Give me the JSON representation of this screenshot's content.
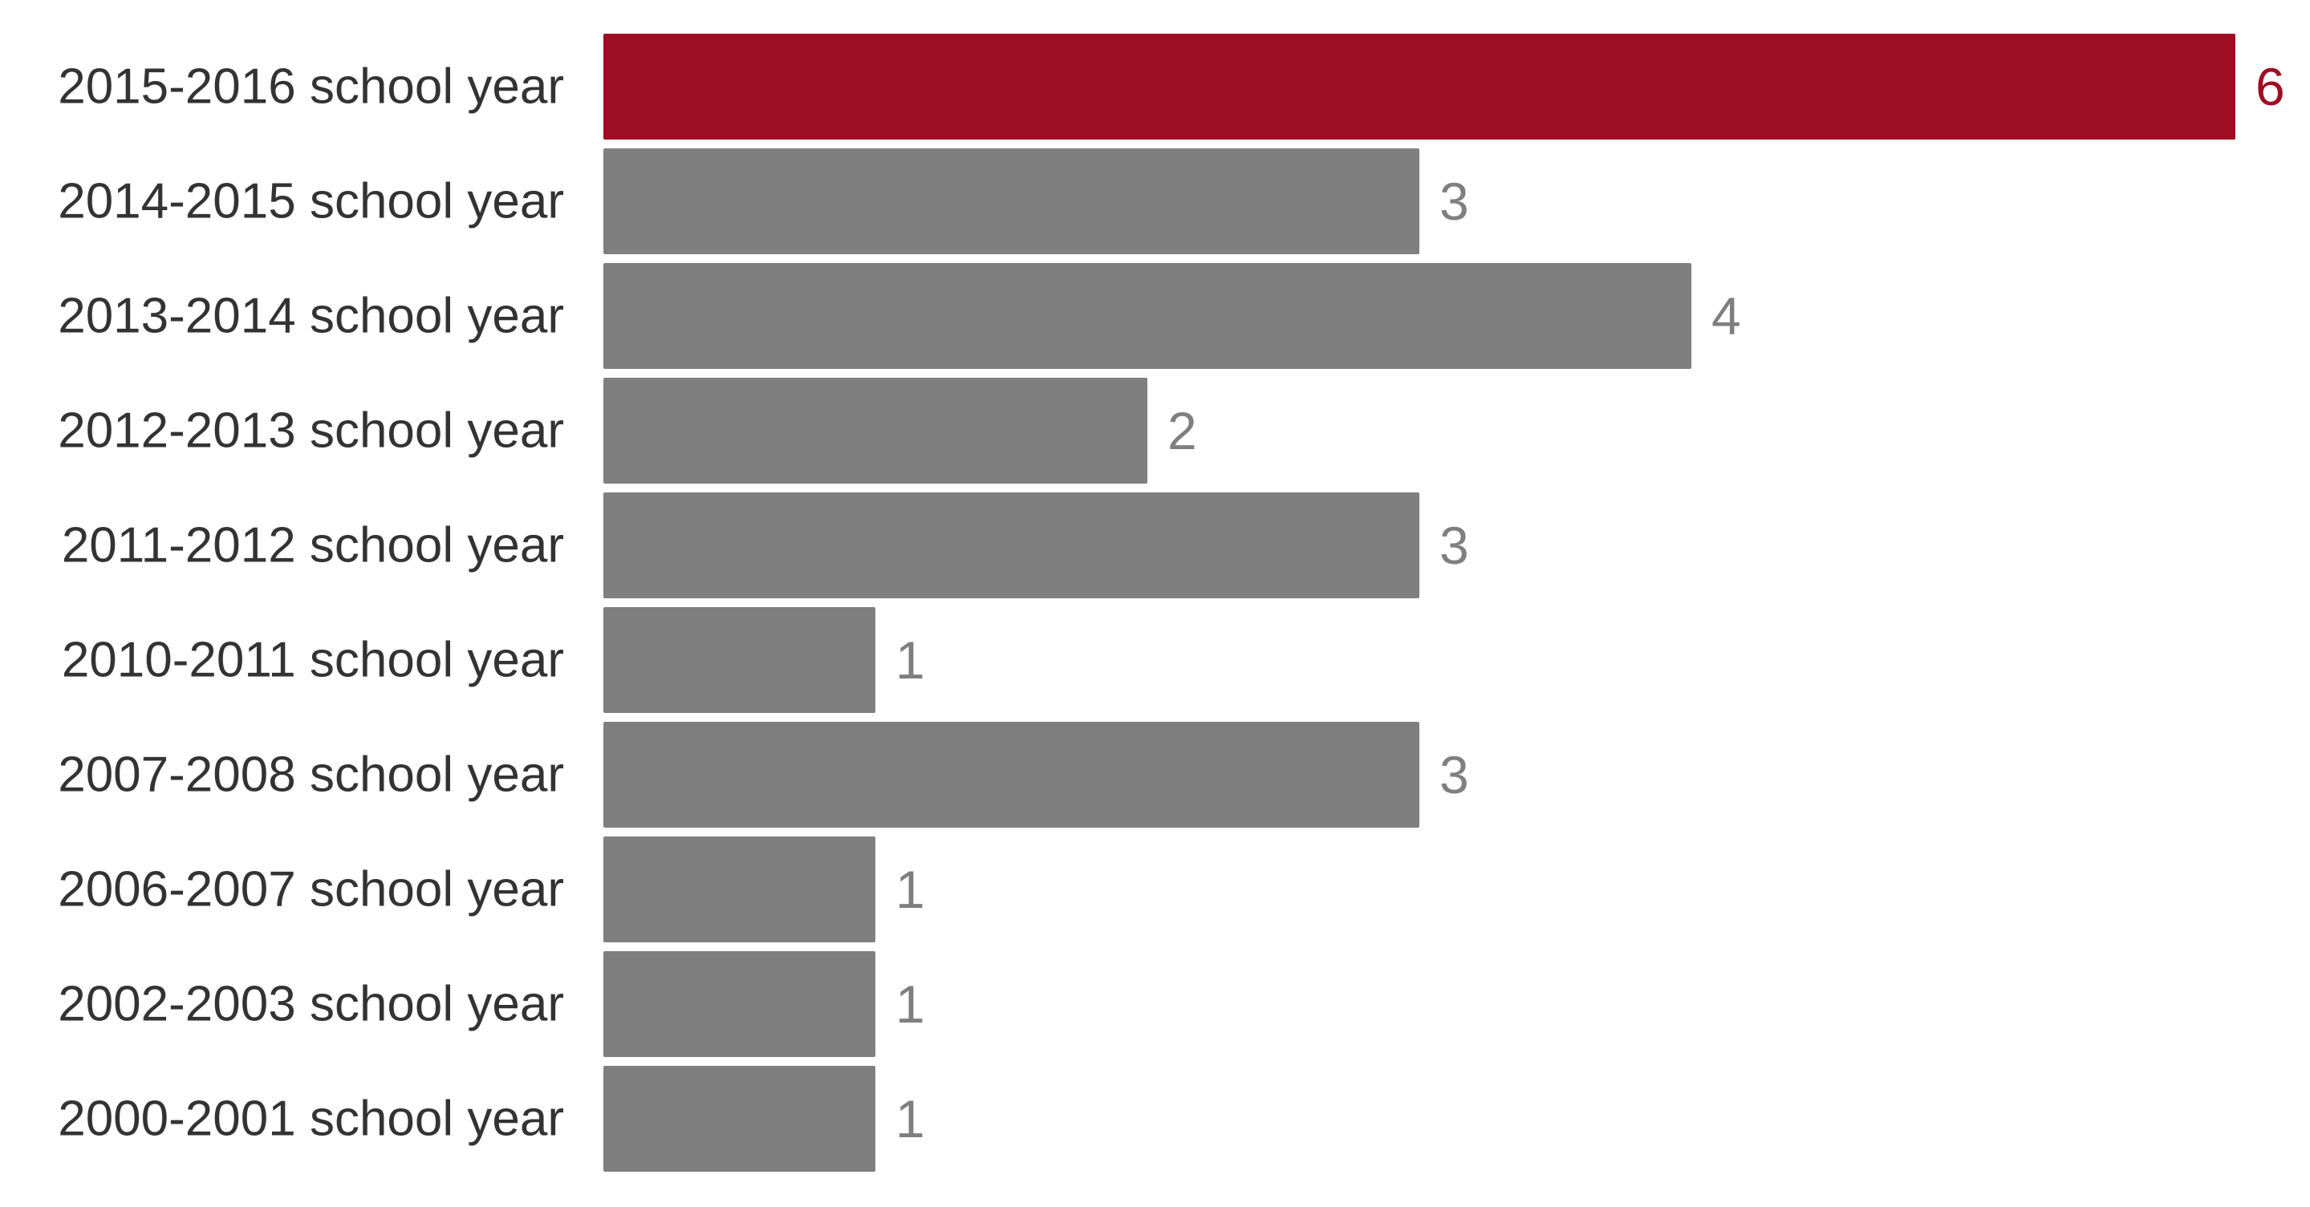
{
  "chart_data": {
    "type": "bar",
    "orientation": "horizontal",
    "title": "",
    "xlabel": "",
    "ylabel": "",
    "xlim": [
      0,
      6
    ],
    "grid": false,
    "legend": "none",
    "highlight_color": "#9e0e23",
    "default_color": "#7f7f7f",
    "categories": [
      "2015-2016 school year",
      "2014-2015 school year",
      "2013-2014 school year",
      "2012-2013 school year",
      "2011-2012 school year",
      "2010-2011 school year",
      "2007-2008 school year",
      "2006-2007 school year",
      "2002-2003 school year",
      "2000-2001 school year"
    ],
    "values": [
      6,
      3,
      4,
      2,
      3,
      1,
      3,
      1,
      1,
      1
    ],
    "highlighted": [
      true,
      false,
      false,
      false,
      false,
      false,
      false,
      false,
      false,
      false
    ]
  }
}
